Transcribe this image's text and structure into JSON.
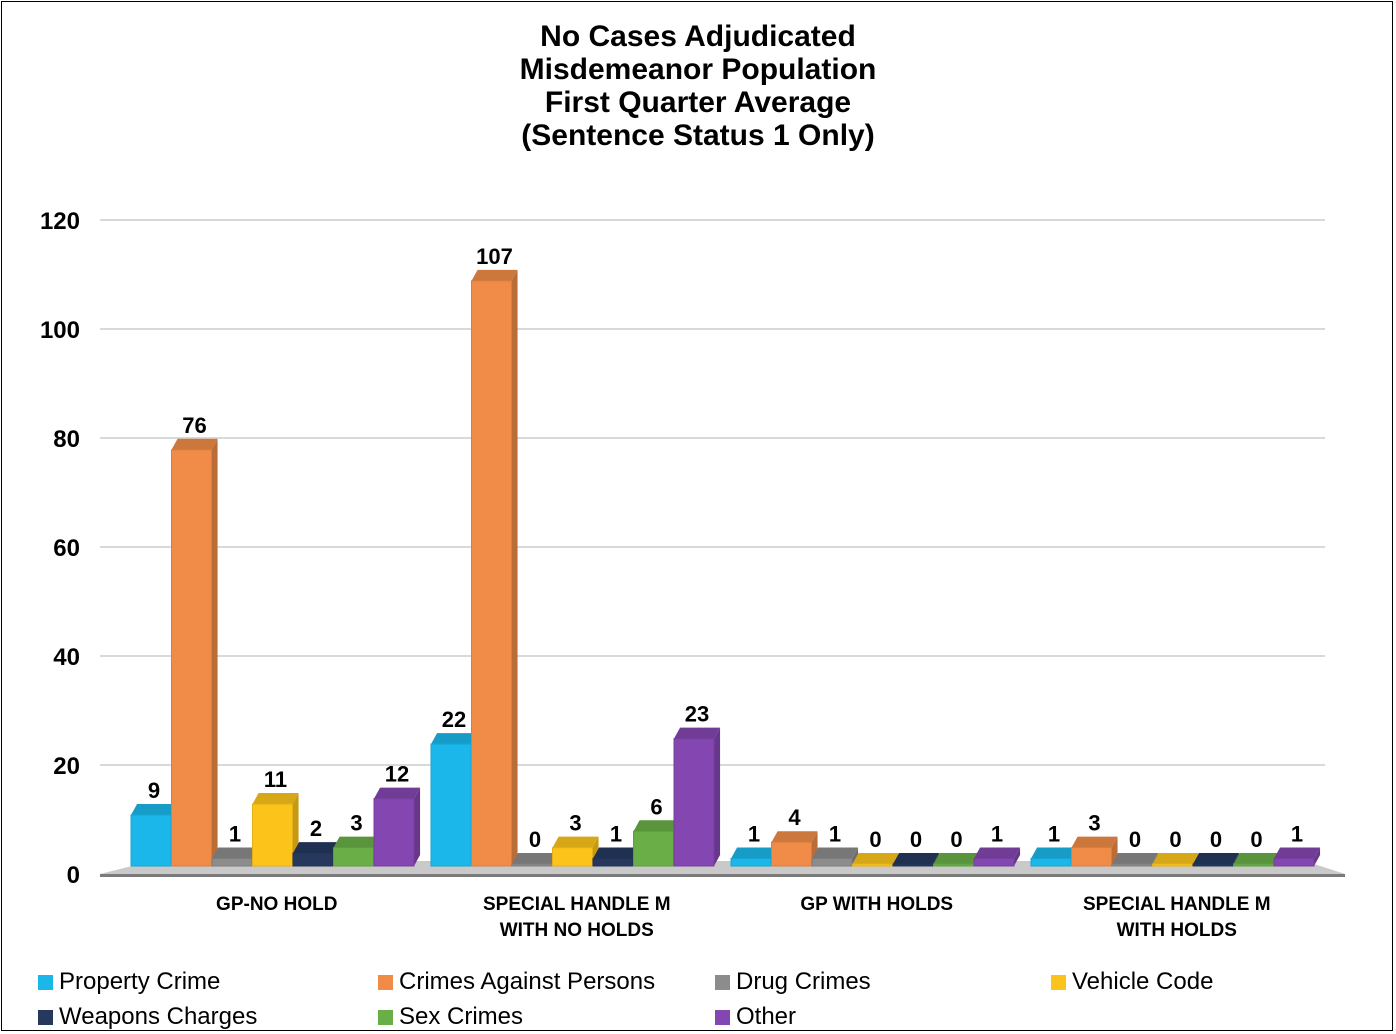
{
  "chart_data": {
    "type": "bar",
    "title_lines": [
      "No Cases Adjudicated",
      "Misdemeanor Population",
      "First Quarter Average",
      "(Sentence Status 1 Only)"
    ],
    "categories": [
      [
        "GP-NO HOLD"
      ],
      [
        "SPECIAL HANDLE M",
        "WITH NO HOLDS"
      ],
      [
        "GP WITH HOLDS"
      ],
      [
        "SPECIAL HANDLE M",
        "WITH HOLDS"
      ]
    ],
    "yticks": [
      "0",
      "20",
      "40",
      "60",
      "80",
      "100",
      "120"
    ],
    "ylim": [
      0,
      120
    ],
    "grid": true,
    "legend_position": "bottom",
    "series": [
      {
        "name": "Property Crime",
        "color": "#1bb7ea",
        "values": [
          9,
          22,
          1,
          1
        ]
      },
      {
        "name": "Crimes Against Persons",
        "color": "#f08c47",
        "values": [
          76,
          107,
          4,
          3
        ]
      },
      {
        "name": "Drug Crimes",
        "color": "#8c8c8c",
        "values": [
          1,
          0,
          1,
          0
        ]
      },
      {
        "name": "Vehicle Code",
        "color": "#fcc41a",
        "values": [
          11,
          3,
          0,
          0
        ]
      },
      {
        "name": "Weapons Charges",
        "color": "#26385e",
        "values": [
          2,
          1,
          0,
          0
        ]
      },
      {
        "name": "Sex Crimes",
        "color": "#6aae47",
        "values": [
          3,
          6,
          0,
          0
        ]
      },
      {
        "name": "Other",
        "color": "#8446b0",
        "values": [
          12,
          23,
          1,
          1
        ]
      }
    ]
  }
}
